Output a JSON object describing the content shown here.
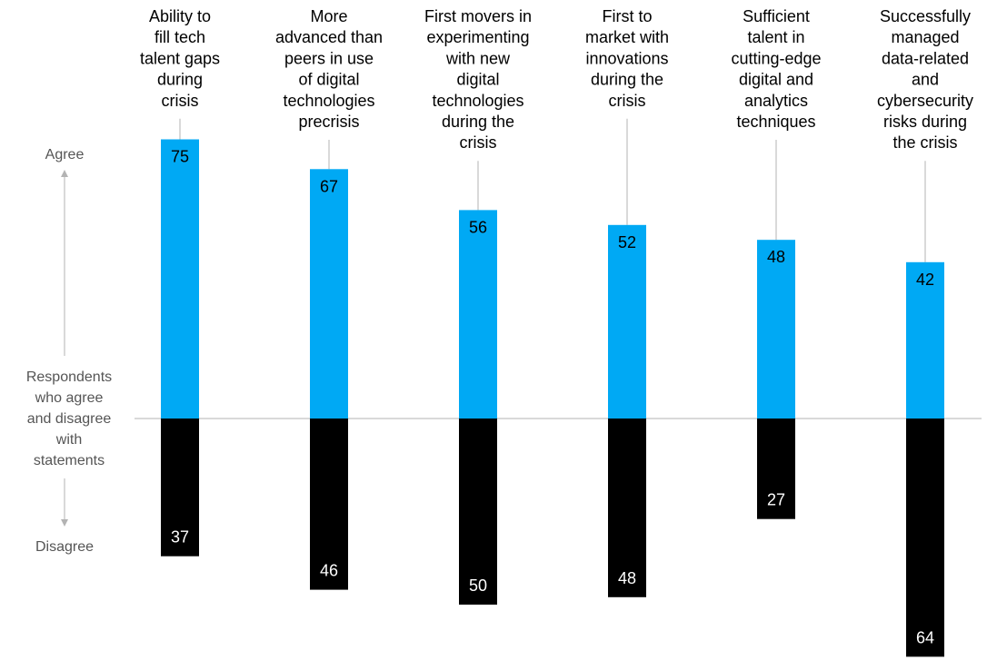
{
  "colors": {
    "agree": "#00a9f4",
    "disagree": "#000000",
    "agree_text": "#000000",
    "disagree_text": "#ffffff",
    "baseline": "#b3b3b3",
    "connector": "#b3b3b3",
    "axis_text": "#555555"
  },
  "axis": {
    "top_label": "Agree",
    "middle_label": [
      "Respondents",
      "who agree",
      "and disagree",
      "with",
      "statements"
    ],
    "bottom_label": "Disagree"
  },
  "chart_data": {
    "type": "bar",
    "layout": "diverging",
    "categories": [
      "Ability to fill tech talent gaps during crisis",
      "More advanced than peers in use of digital technologies precrisis",
      "First movers in experimenting with new digital technologies during the crisis",
      "First to market with innovations during the crisis",
      "Sufficient talent in cutting-edge digital and analytics techniques",
      "Successfully managed data-related and cybersecurity risks during the crisis"
    ],
    "category_lines": [
      [
        "Ability to",
        "fill tech",
        "talent gaps",
        "during",
        "crisis"
      ],
      [
        "More",
        "advanced than",
        "peers in use",
        "of digital",
        "technologies",
        "precrisis"
      ],
      [
        "First movers in",
        "experimenting",
        "with new",
        "digital",
        "technologies",
        "during the",
        "crisis"
      ],
      [
        "First to",
        "market with",
        "innovations",
        "during the",
        "crisis"
      ],
      [
        "Sufficient",
        "talent in",
        "cutting-edge",
        "digital and",
        "analytics",
        "techniques"
      ],
      [
        "Successfully",
        "managed",
        "data-related",
        "and",
        "cybersecurity",
        "risks during",
        "the crisis"
      ]
    ],
    "series": [
      {
        "name": "Agree",
        "values": [
          75,
          67,
          56,
          52,
          48,
          42
        ]
      },
      {
        "name": "Disagree",
        "values": [
          37,
          46,
          50,
          48,
          27,
          64
        ]
      }
    ],
    "title": "",
    "xlabel": "",
    "ylabel": "Respondents who agree and disagree with statements",
    "grid": false
  }
}
